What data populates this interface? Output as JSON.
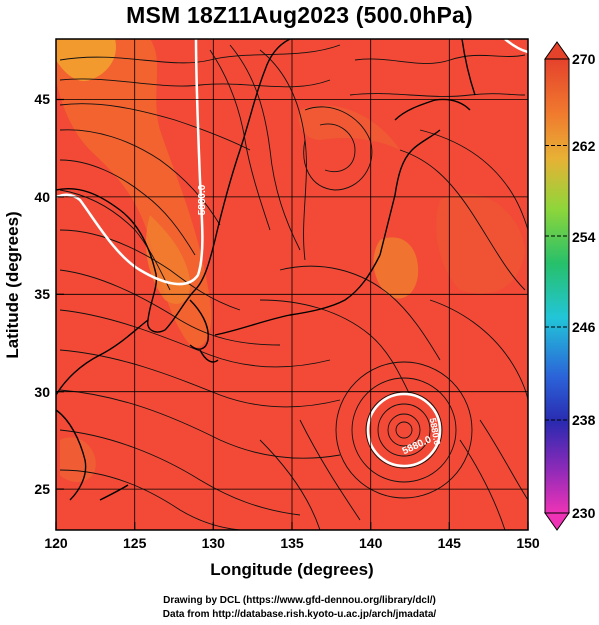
{
  "title": "MSM 18Z11Aug2023 (500.0hPa)",
  "map": {
    "lon_ticks": [
      "120",
      "125",
      "130",
      "135",
      "140",
      "145",
      "150"
    ],
    "lat_ticks": [
      "25",
      "30",
      "35",
      "40",
      "45"
    ],
    "xlabel": "Longitude (degrees)",
    "ylabel": "Latitude (degrees)",
    "lon_range": [
      120,
      150
    ],
    "lat_range": [
      22.4,
      47.6
    ],
    "field_color": "#f24a36",
    "contour_labels": [
      "5880.0",
      "5880.0",
      "5880.0"
    ]
  },
  "colorbar": {
    "labels": [
      "270",
      "262",
      "254",
      "246",
      "238",
      "230"
    ],
    "stops": [
      "#e5422c",
      "#f07a2e",
      "#e7b235",
      "#8ed63a",
      "#27c06a",
      "#22c5d8",
      "#2b63d8",
      "#2a2ab0",
      "#8a2ab8",
      "#ee33b6"
    ]
  },
  "credits": {
    "line1": "Drawing by DCL (https://www.gfd-dennou.org/library/dcl/)",
    "line2": "Data from http://database.rish.kyoto-u.ac.jp/arch/jmadata/"
  }
}
